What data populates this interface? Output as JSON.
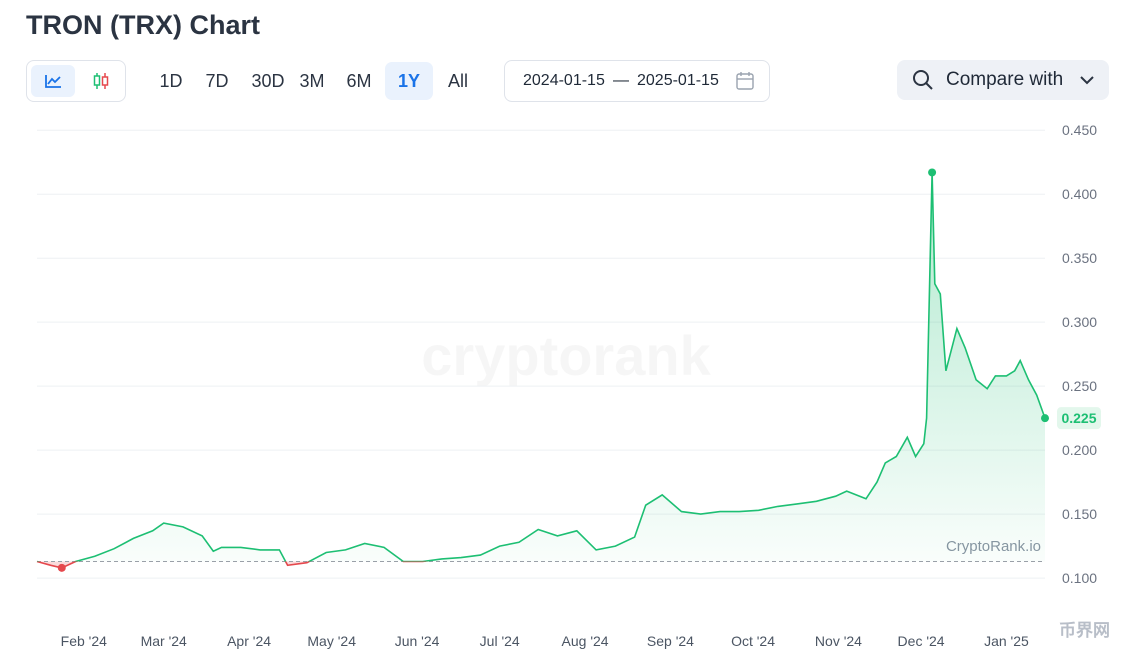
{
  "chart_data": {
    "type": "line",
    "title": "TRON (TRX) Chart",
    "ranges": [
      "1D",
      "7D",
      "30D",
      "3M",
      "6M",
      "1Y",
      "All"
    ],
    "date_start": "2024-01-15",
    "date_separator": "—",
    "date_end": "2025-01-15",
    "compare": "Compare with",
    "watermark": "cryptorank",
    "source": "CryptoRank.io",
    "corner_mark": "币界网",
    "up_color": "#1dbf73",
    "down_color": "#e5484d",
    "x": [
      "2024-01-15",
      "2024-01-20",
      "2024-01-24",
      "2024-01-29",
      "2024-02-05",
      "2024-02-12",
      "2024-02-19",
      "2024-02-26",
      "2024-03-01",
      "2024-03-08",
      "2024-03-15",
      "2024-03-19",
      "2024-03-22",
      "2024-03-29",
      "2024-04-05",
      "2024-04-12",
      "2024-04-15",
      "2024-04-22",
      "2024-04-29",
      "2024-05-06",
      "2024-05-13",
      "2024-05-20",
      "2024-05-27",
      "2024-06-03",
      "2024-06-10",
      "2024-06-17",
      "2024-06-24",
      "2024-07-01",
      "2024-07-08",
      "2024-07-15",
      "2024-07-22",
      "2024-07-29",
      "2024-08-05",
      "2024-08-12",
      "2024-08-19",
      "2024-08-23",
      "2024-08-29",
      "2024-09-05",
      "2024-09-12",
      "2024-09-19",
      "2024-09-26",
      "2024-10-03",
      "2024-10-10",
      "2024-10-17",
      "2024-10-24",
      "2024-10-31",
      "2024-11-04",
      "2024-11-11",
      "2024-11-15",
      "2024-11-18",
      "2024-11-22",
      "2024-11-26",
      "2024-11-29",
      "2024-12-02",
      "2024-12-03",
      "2024-12-05",
      "2024-12-06",
      "2024-12-08",
      "2024-12-10",
      "2024-12-14",
      "2024-12-17",
      "2024-12-21",
      "2024-12-25",
      "2024-12-28",
      "2025-01-01",
      "2025-01-04",
      "2025-01-06",
      "2025-01-09",
      "2025-01-12",
      "2025-01-15"
    ],
    "values": [
      0.113,
      0.11,
      0.108,
      0.113,
      0.117,
      0.123,
      0.131,
      0.137,
      0.143,
      0.14,
      0.133,
      0.121,
      0.124,
      0.124,
      0.122,
      0.122,
      0.11,
      0.112,
      0.12,
      0.122,
      0.127,
      0.124,
      0.113,
      0.113,
      0.115,
      0.116,
      0.118,
      0.125,
      0.128,
      0.138,
      0.133,
      0.137,
      0.122,
      0.125,
      0.132,
      0.157,
      0.165,
      0.152,
      0.15,
      0.152,
      0.152,
      0.153,
      0.156,
      0.158,
      0.16,
      0.164,
      0.168,
      0.162,
      0.175,
      0.19,
      0.195,
      0.21,
      0.195,
      0.205,
      0.225,
      0.417,
      0.33,
      0.322,
      0.262,
      0.295,
      0.28,
      0.255,
      0.248,
      0.258,
      0.258,
      0.262,
      0.27,
      0.255,
      0.243,
      0.225
    ],
    "xlim": [
      "2024-01-15",
      "2025-01-15"
    ],
    "xticks": [
      {
        "value": "2024-02-01",
        "label": "Feb '24"
      },
      {
        "value": "2024-03-01",
        "label": "Mar '24"
      },
      {
        "value": "2024-04-01",
        "label": "Apr '24"
      },
      {
        "value": "2024-05-01",
        "label": "May '24"
      },
      {
        "value": "2024-06-01",
        "label": "Jun '24"
      },
      {
        "value": "2024-07-01",
        "label": "Jul '24"
      },
      {
        "value": "2024-08-01",
        "label": "Aug '24"
      },
      {
        "value": "2024-09-01",
        "label": "Sep '24"
      },
      {
        "value": "2024-10-01",
        "label": "Oct '24"
      },
      {
        "value": "2024-11-01",
        "label": "Nov '24"
      },
      {
        "value": "2024-12-01",
        "label": "Dec '24"
      },
      {
        "value": "2025-01-01",
        "label": "Jan '25"
      }
    ],
    "ylim": [
      0.061,
      0.458
    ],
    "yticks": [
      {
        "value": 0.1,
        "label": "0.100"
      },
      {
        "value": 0.15,
        "label": "0.150"
      },
      {
        "value": 0.2,
        "label": "0.200"
      },
      {
        "value": 0.25,
        "label": "0.250"
      },
      {
        "value": 0.3,
        "label": "0.300"
      },
      {
        "value": 0.35,
        "label": "0.350"
      },
      {
        "value": 0.4,
        "label": "0.400"
      },
      {
        "value": 0.45,
        "label": "0.450"
      }
    ],
    "grid": true
  }
}
